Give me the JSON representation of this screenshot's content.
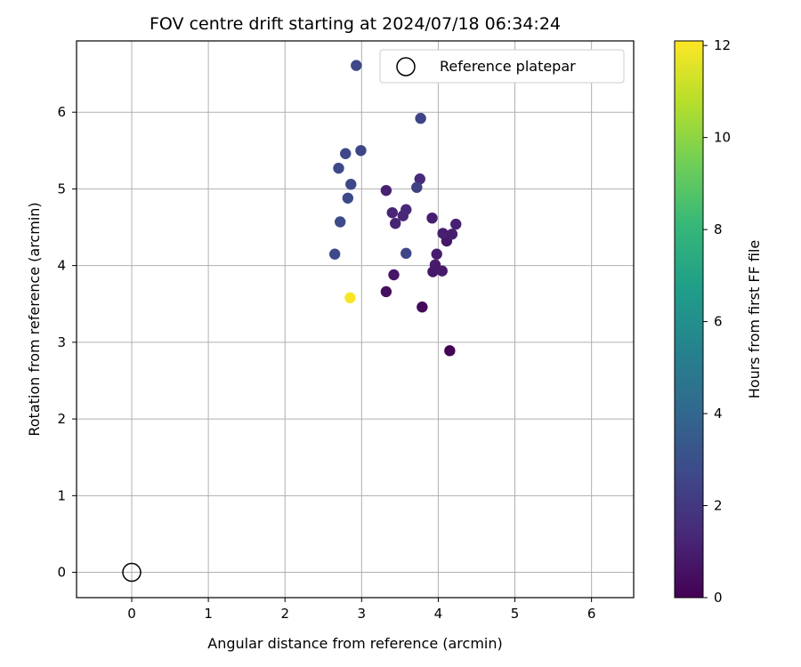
{
  "chart_data": {
    "type": "scatter",
    "title": "FOV centre drift starting at 2024/07/18 06:34:24",
    "xlabel": "Angular distance from reference (arcmin)",
    "ylabel": "Rotation from reference (arcmin)",
    "xlim": [
      -0.72,
      6.55
    ],
    "ylim": [
      -0.33,
      6.93
    ],
    "xticks": [
      0,
      1,
      2,
      3,
      4,
      5,
      6
    ],
    "yticks": [
      0,
      1,
      2,
      3,
      4,
      5,
      6
    ],
    "grid": true,
    "legend": {
      "position": "top-right",
      "entries": [
        "Reference platepar"
      ]
    },
    "reference_point": {
      "x": 0,
      "y": 0,
      "label": "Reference platepar"
    },
    "colorbar": {
      "label": "Hours from first FF file",
      "range": [
        0,
        12.1
      ],
      "ticks": [
        0,
        2,
        4,
        6,
        8,
        10,
        12
      ],
      "colormap": "viridis",
      "stops": [
        "#440154",
        "#482878",
        "#3e4989",
        "#31688e",
        "#26828e",
        "#1f9e89",
        "#35b779",
        "#6ece58",
        "#b5de2b",
        "#fde725"
      ]
    },
    "points": [
      {
        "x": 4.15,
        "y": 2.89,
        "h": 0.05
      },
      {
        "x": 3.79,
        "y": 3.46,
        "h": 0.3
      },
      {
        "x": 3.32,
        "y": 3.66,
        "h": 0.5
      },
      {
        "x": 3.42,
        "y": 3.88,
        "h": 0.7
      },
      {
        "x": 3.93,
        "y": 3.92,
        "h": 0.8
      },
      {
        "x": 4.05,
        "y": 3.93,
        "h": 0.9
      },
      {
        "x": 3.96,
        "y": 4.01,
        "h": 0.85
      },
      {
        "x": 3.98,
        "y": 4.15,
        "h": 0.95
      },
      {
        "x": 4.11,
        "y": 4.32,
        "h": 0.75
      },
      {
        "x": 4.18,
        "y": 4.41,
        "h": 1.0
      },
      {
        "x": 4.06,
        "y": 4.42,
        "h": 1.05
      },
      {
        "x": 4.23,
        "y": 4.54,
        "h": 1.1
      },
      {
        "x": 3.92,
        "y": 4.62,
        "h": 1.0
      },
      {
        "x": 3.44,
        "y": 4.55,
        "h": 1.2
      },
      {
        "x": 3.54,
        "y": 4.65,
        "h": 1.3
      },
      {
        "x": 3.4,
        "y": 4.69,
        "h": 1.25
      },
      {
        "x": 3.58,
        "y": 4.73,
        "h": 1.35
      },
      {
        "x": 3.32,
        "y": 4.98,
        "h": 1.15
      },
      {
        "x": 3.76,
        "y": 5.13,
        "h": 1.45
      },
      {
        "x": 3.72,
        "y": 5.02,
        "h": 2.4
      },
      {
        "x": 3.58,
        "y": 4.16,
        "h": 2.6
      },
      {
        "x": 2.65,
        "y": 4.15,
        "h": 2.7
      },
      {
        "x": 2.72,
        "y": 4.57,
        "h": 2.8
      },
      {
        "x": 2.82,
        "y": 4.88,
        "h": 2.75
      },
      {
        "x": 2.86,
        "y": 5.06,
        "h": 2.65
      },
      {
        "x": 2.7,
        "y": 5.27,
        "h": 2.7
      },
      {
        "x": 2.79,
        "y": 5.46,
        "h": 2.6
      },
      {
        "x": 2.99,
        "y": 5.5,
        "h": 2.55
      },
      {
        "x": 3.77,
        "y": 5.92,
        "h": 2.5
      },
      {
        "x": 2.93,
        "y": 6.61,
        "h": 2.6
      },
      {
        "x": 2.85,
        "y": 3.58,
        "h": 12.0
      }
    ]
  }
}
